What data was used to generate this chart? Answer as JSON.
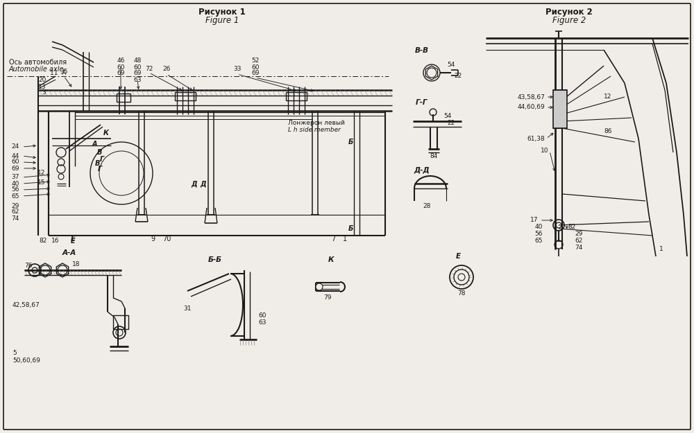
{
  "bg_color": "#f0ede8",
  "line_color": "#1a1a1a",
  "title1": "Рисунок 1",
  "title1_sub": "Figure 1",
  "title2": "Рисунок 2",
  "title2_sub": "Figure 2"
}
